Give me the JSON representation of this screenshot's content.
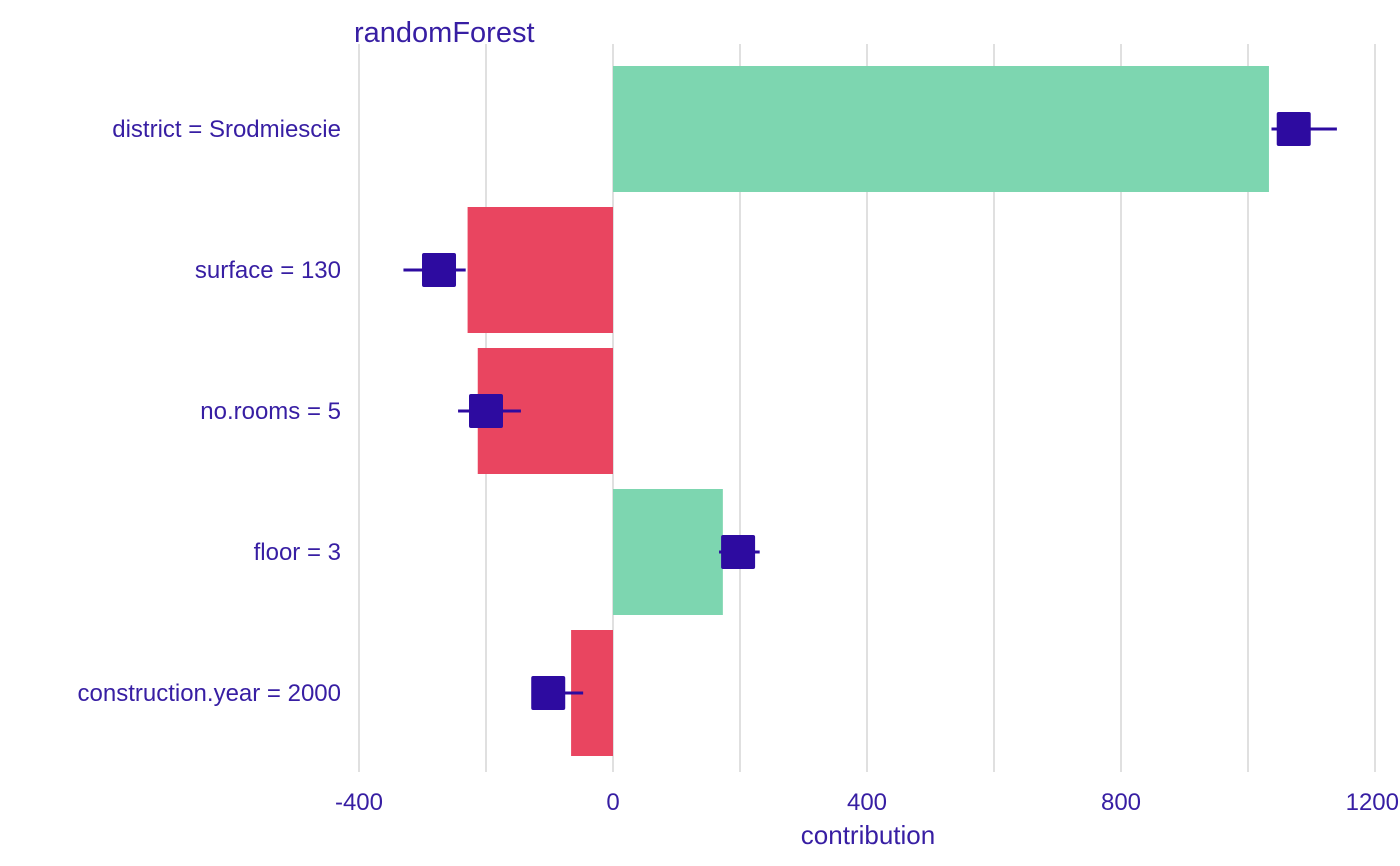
{
  "chart_data": {
    "type": "bar",
    "title": "randomForest",
    "xlabel": "contribution",
    "ylabel": "",
    "xlim": [
      -400,
      1200
    ],
    "x_ticks": [
      -400,
      0,
      400,
      800,
      1200
    ],
    "x_tick_labels": [
      "-400",
      "0",
      "400",
      "800",
      "1200"
    ],
    "grid": true,
    "categories": [
      "district = Srodmiescie",
      "surface = 130",
      "no.rooms = 5",
      "floor = 3",
      "construction.year = 2000"
    ],
    "values": [
      1033,
      -229,
      -213,
      173,
      -66
    ],
    "uncertainty": [
      {
        "mean": 1072,
        "low": 1037,
        "high": 1140
      },
      {
        "mean": -274,
        "low": -330,
        "high": -232
      },
      {
        "mean": -200,
        "low": -244,
        "high": -145
      },
      {
        "mean": 197,
        "low": 167,
        "high": 231
      },
      {
        "mean": -102,
        "low": -127,
        "high": -47
      }
    ],
    "colors": {
      "positive": "#7dd6b0",
      "negative": "#e94560",
      "marker": "#2d0ba0",
      "text": "#371ea3",
      "grid": "#e0e0e0"
    }
  }
}
